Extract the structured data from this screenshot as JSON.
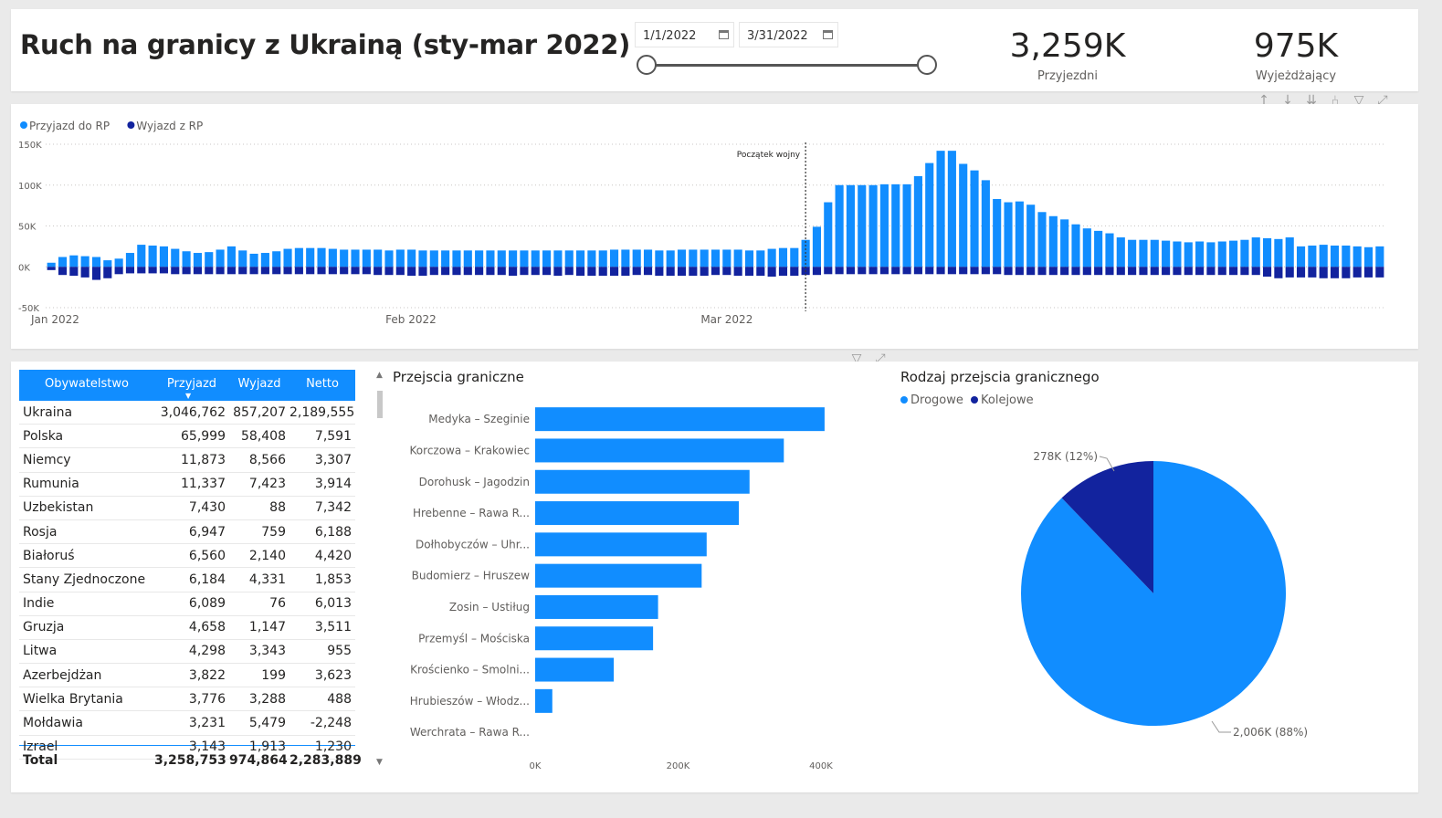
{
  "header": {
    "title": "Ruch na granicy z Ukrainą (sty-mar 2022)",
    "date_from": "1/1/2022",
    "date_to": "3/31/2022",
    "kpis": [
      {
        "value": "3,259K",
        "label": "Przyjezdni"
      },
      {
        "value": "975K",
        "label": "Wyjeżdżający"
      }
    ]
  },
  "toolbar_top": [
    "↑",
    "↓",
    "⇊",
    "⑃",
    "▽",
    "⤢"
  ],
  "toolbar_mid": [
    "▽",
    "⤢"
  ],
  "colors": {
    "accent": "#118dff",
    "dark": "#12239e",
    "grid": "#c8c6c4"
  },
  "chart_data": [
    {
      "type": "bar",
      "title": "",
      "legend_position": "top-left",
      "series": [
        {
          "name": "Przyjazd do RP",
          "color": "#118dff",
          "values": [
            5000,
            12000,
            14000,
            13000,
            12000,
            8000,
            10000,
            17000,
            27000,
            26000,
            25000,
            22000,
            19000,
            17000,
            18000,
            21000,
            25000,
            20000,
            16000,
            17000,
            19000,
            22000,
            23000,
            23000,
            23000,
            22000,
            21000,
            21000,
            21000,
            21000,
            20000,
            21000,
            21000,
            20000,
            20000,
            20000,
            20000,
            20000,
            20000,
            20000,
            20000,
            20000,
            20000,
            20000,
            20000,
            20000,
            20000,
            20000,
            20000,
            20000,
            21000,
            21000,
            21000,
            21000,
            20000,
            20000,
            21000,
            21000,
            21000,
            21000,
            21000,
            21000,
            20000,
            20000,
            22000,
            23000,
            23000,
            33000,
            49000,
            79000,
            100000,
            100000,
            100000,
            100000,
            101000,
            101000,
            101000,
            111000,
            127000,
            142000,
            142000,
            126000,
            118000,
            106000,
            83000,
            79000,
            80000,
            76000,
            67000,
            62000,
            58000,
            52000,
            47000,
            44000,
            41000,
            36000,
            33000,
            33000,
            33000,
            32000,
            31000,
            30000,
            31000,
            30000,
            31000,
            32000,
            33000,
            36000,
            35000,
            34000,
            36000,
            25000,
            26000,
            27000,
            26000,
            26000,
            25000,
            24000,
            25000
          ]
        },
        {
          "name": "Wyjazd z RP",
          "color": "#12239e",
          "values": [
            -4000,
            -10000,
            -11000,
            -13000,
            -16000,
            -14000,
            -9000,
            -8000,
            -8000,
            -8000,
            -8000,
            -9000,
            -9000,
            -9000,
            -9000,
            -9000,
            -9000,
            -9000,
            -9000,
            -9000,
            -9000,
            -9000,
            -9000,
            -9000,
            -9000,
            -9000,
            -9000,
            -9000,
            -9000,
            -10000,
            -10000,
            -10000,
            -11000,
            -11000,
            -10000,
            -10000,
            -10000,
            -10000,
            -10000,
            -10000,
            -10000,
            -11000,
            -10000,
            -10000,
            -10000,
            -11000,
            -10000,
            -11000,
            -11000,
            -11000,
            -11000,
            -11000,
            -10000,
            -10000,
            -11000,
            -11000,
            -11000,
            -11000,
            -11000,
            -10000,
            -10000,
            -11000,
            -11000,
            -11000,
            -12000,
            -11000,
            -11000,
            -10000,
            -10000,
            -9000,
            -9000,
            -9000,
            -9000,
            -9000,
            -9000,
            -9000,
            -9000,
            -9000,
            -9000,
            -9000,
            -9000,
            -9000,
            -9000,
            -9000,
            -9000,
            -10000,
            -10000,
            -10000,
            -10000,
            -10000,
            -10000,
            -10000,
            -10000,
            -10000,
            -10000,
            -10000,
            -10000,
            -10000,
            -10000,
            -10000,
            -10000,
            -10000,
            -10000,
            -10000,
            -10000,
            -10000,
            -10000,
            -10000,
            -12000,
            -14000,
            -13000,
            -13000,
            -13000,
            -14000,
            -14000,
            -14000,
            -13000,
            -13000,
            -13000
          ]
        }
      ],
      "x_tick_labels": [
        "Jan 2022",
        "Feb 2022",
        "Mar 2022"
      ],
      "y_tick_labels": [
        "150K",
        "100K",
        "50K",
        "0K",
        "-50K"
      ],
      "ylim": [
        -50000,
        150000
      ],
      "annotation": {
        "label": "Początek wojny"
      }
    },
    {
      "type": "table",
      "columns": [
        "Obywatelstwo",
        "Przyjazd",
        "Wyjazd",
        "Netto"
      ],
      "rows": [
        [
          "Ukraina",
          "3,046,762",
          "857,207",
          "2,189,555"
        ],
        [
          "Polska",
          "65,999",
          "58,408",
          "7,591"
        ],
        [
          "Niemcy",
          "11,873",
          "8,566",
          "3,307"
        ],
        [
          "Rumunia",
          "11,337",
          "7,423",
          "3,914"
        ],
        [
          "Uzbekistan",
          "7,430",
          "88",
          "7,342"
        ],
        [
          "Rosja",
          "6,947",
          "759",
          "6,188"
        ],
        [
          "Białoruś",
          "6,560",
          "2,140",
          "4,420"
        ],
        [
          "Stany Zjednoczone",
          "6,184",
          "4,331",
          "1,853"
        ],
        [
          "Indie",
          "6,089",
          "76",
          "6,013"
        ],
        [
          "Gruzja",
          "4,658",
          "1,147",
          "3,511"
        ],
        [
          "Litwa",
          "4,298",
          "3,343",
          "955"
        ],
        [
          "Azerbejdżan",
          "3,822",
          "199",
          "3,623"
        ],
        [
          "Wielka Brytania",
          "3,776",
          "3,288",
          "488"
        ],
        [
          "Mołdawia",
          "3,231",
          "5,479",
          "-2,248"
        ],
        [
          "Izrael",
          "3,143",
          "1,913",
          "1,230"
        ]
      ],
      "total": [
        "Total",
        "3,258,753",
        "974,864",
        "2,283,889"
      ]
    },
    {
      "type": "bar",
      "orientation": "horizontal",
      "title": "Przejscia graniczne",
      "categories": [
        "Medyka – Szeginie",
        "Korczowa – Krakowiec",
        "Dorohusk – Jagodzin",
        "Hrebenne – Rawa R...",
        "Dołhobyczów – Uhr...",
        "Budomierz – Hruszew",
        "Zosin – Ustiług",
        "Przemyśl – Mościska",
        "Krościenko – Smolni...",
        "Hrubieszów – Włodz...",
        "Werchrata – Rawa R..."
      ],
      "values": [
        405000,
        348000,
        300000,
        285000,
        240000,
        233000,
        172000,
        165000,
        110000,
        24000,
        0
      ],
      "x_tick_labels": [
        "0K",
        "200K",
        "400K"
      ],
      "xlim": [
        0,
        400000
      ],
      "color": "#118dff"
    },
    {
      "type": "pie",
      "title": "Rodzaj przejscia granicznego",
      "legend_position": "top-left",
      "slices": [
        {
          "name": "Drogowe",
          "value": 2006,
          "label": "2,006K (88%)",
          "color": "#118dff"
        },
        {
          "name": "Kolejowe",
          "value": 278,
          "label": "278K (12%)",
          "color": "#12239e"
        }
      ]
    }
  ]
}
